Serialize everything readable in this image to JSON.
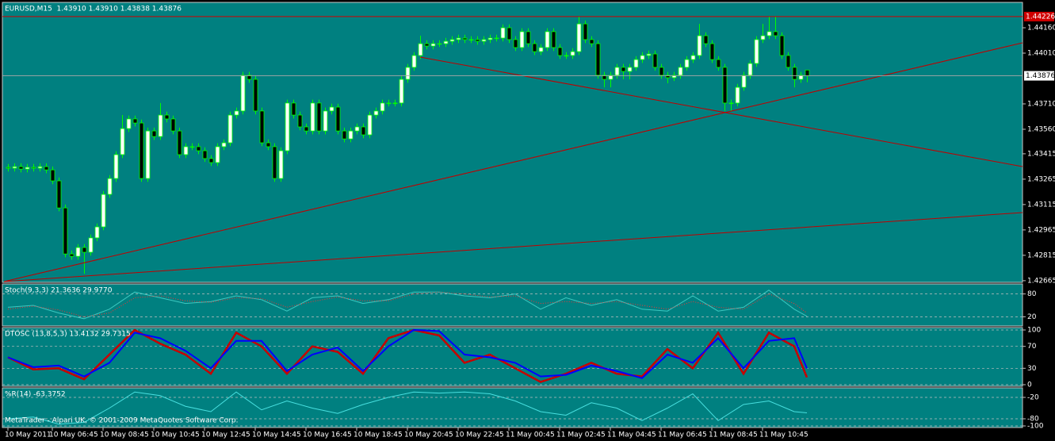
{
  "chart_data": [
    {
      "type": "candlestick",
      "title": "EURUSD,M15  1.43910 1.43910 1.43838 1.43876",
      "candle_color": "#00ff00",
      "bull_fill": "#ffffff",
      "bear_fill": "#000000",
      "open": [
        1.43335,
        1.4333,
        1.43339,
        1.43325,
        1.43335,
        1.4333,
        1.43339,
        1.4332,
        1.43255,
        1.43095,
        1.42823,
        1.42809,
        1.42861,
        1.42833,
        1.42918,
        1.42983,
        1.43175,
        1.43269,
        1.4341,
        1.43564,
        1.43621,
        1.43597,
        1.43269,
        1.4355,
        1.43517,
        1.43644,
        1.43621,
        1.4355,
        1.4341,
        1.43457,
        1.43457,
        1.43433,
        1.43387,
        1.43363,
        1.43457,
        1.4348,
        1.43644,
        1.43668,
        1.43879,
        1.43855,
        1.43668,
        1.4348,
        1.43457,
        1.43269,
        1.43433,
        1.43715,
        1.43644,
        1.43574,
        1.4355,
        1.43715,
        1.4355,
        1.43668,
        1.43691,
        1.4355,
        1.43503,
        1.4355,
        1.43574,
        1.43527,
        1.43644,
        1.43668,
        1.43715,
        1.43715,
        1.43715,
        1.43855,
        1.43926,
        1.43996,
        1.44066,
        1.44052,
        1.44066,
        1.44066,
        1.4408,
        1.4409,
        1.44099,
        1.4409,
        1.4409,
        1.4408,
        1.4409,
        1.44099,
        1.44099,
        1.4416,
        1.4409,
        1.44043,
        1.44137,
        1.44066,
        1.44019,
        1.44043,
        1.44137,
        1.44043,
        1.43996,
        1.43996,
        1.44019,
        1.44183,
        1.4409,
        1.44066,
        1.43879,
        1.43855,
        1.43879,
        1.43926,
        1.43902,
        1.43926,
        1.43972,
        1.43996,
        1.44005,
        1.43926,
        1.43879,
        1.43865,
        1.43879,
        1.43926,
        1.43972,
        1.43996,
        1.44113,
        1.44066,
        1.43972,
        1.43926,
        1.43715,
        1.43715,
        1.43808,
        1.43879,
        1.43949,
        1.4409,
        1.44113,
        1.44137,
        1.44113,
        1.43996,
        1.43926,
        1.43855,
        1.4391
      ],
      "high": [
        1.43355,
        1.43359,
        1.43359,
        1.43355,
        1.43355,
        1.43359,
        1.43359,
        1.4334,
        1.43275,
        1.43115,
        1.42843,
        1.42881,
        1.42881,
        1.42938,
        1.43003,
        1.43195,
        1.43289,
        1.4343,
        1.43644,
        1.43641,
        1.43641,
        1.43617,
        1.4357,
        1.4357,
        1.43715,
        1.43664,
        1.43641,
        1.4357,
        1.43477,
        1.43477,
        1.43477,
        1.43453,
        1.43407,
        1.43477,
        1.435,
        1.43664,
        1.43688,
        1.43899,
        1.43899,
        1.43875,
        1.43688,
        1.435,
        1.43477,
        1.43453,
        1.43735,
        1.43735,
        1.43664,
        1.43594,
        1.43735,
        1.43735,
        1.43688,
        1.43711,
        1.43711,
        1.4357,
        1.4357,
        1.43594,
        1.43594,
        1.43664,
        1.43688,
        1.43735,
        1.43735,
        1.43735,
        1.43875,
        1.43946,
        1.44016,
        1.44113,
        1.44086,
        1.44086,
        1.44086,
        1.441,
        1.4411,
        1.44119,
        1.44119,
        1.4411,
        1.4411,
        1.4411,
        1.44119,
        1.44119,
        1.4418,
        1.4418,
        1.4411,
        1.44157,
        1.44157,
        1.44086,
        1.44063,
        1.44157,
        1.44157,
        1.44063,
        1.44016,
        1.44039,
        1.44226,
        1.44203,
        1.4411,
        1.44086,
        1.43899,
        1.43899,
        1.43946,
        1.43946,
        1.43946,
        1.43992,
        1.44016,
        1.44025,
        1.44025,
        1.43946,
        1.43899,
        1.43899,
        1.43946,
        1.43992,
        1.44016,
        1.44183,
        1.44133,
        1.44086,
        1.43992,
        1.43946,
        1.43735,
        1.43828,
        1.43899,
        1.43969,
        1.4411,
        1.44183,
        1.44226,
        1.44226,
        1.44133,
        1.44016,
        1.43946,
        1.43899,
        1.4391
      ],
      "low": [
        1.4331,
        1.4331,
        1.43305,
        1.43305,
        1.4331,
        1.4331,
        1.433,
        1.43235,
        1.43075,
        1.42803,
        1.42789,
        1.42789,
        1.42706,
        1.42813,
        1.42898,
        1.42963,
        1.43155,
        1.43249,
        1.4339,
        1.43544,
        1.43577,
        1.43249,
        1.43249,
        1.43497,
        1.43497,
        1.43601,
        1.4353,
        1.4339,
        1.4339,
        1.43437,
        1.43413,
        1.43367,
        1.43343,
        1.43343,
        1.43437,
        1.4346,
        1.43624,
        1.43648,
        1.43835,
        1.43648,
        1.4346,
        1.43437,
        1.43249,
        1.43249,
        1.43413,
        1.43624,
        1.43554,
        1.4353,
        1.4353,
        1.4353,
        1.4353,
        1.43648,
        1.4353,
        1.43483,
        1.43483,
        1.4353,
        1.43507,
        1.43507,
        1.43624,
        1.43648,
        1.43695,
        1.43695,
        1.43695,
        1.43835,
        1.43906,
        1.43976,
        1.44032,
        1.44032,
        1.44046,
        1.44046,
        1.4406,
        1.4407,
        1.4407,
        1.4407,
        1.4406,
        1.4406,
        1.4407,
        1.44079,
        1.44079,
        1.4407,
        1.44023,
        1.44023,
        1.44046,
        1.43999,
        1.43999,
        1.44023,
        1.44023,
        1.43976,
        1.43976,
        1.43976,
        1.43999,
        1.4407,
        1.44046,
        1.43859,
        1.43808,
        1.43808,
        1.43859,
        1.43855,
        1.43855,
        1.43906,
        1.43952,
        1.43976,
        1.43906,
        1.43859,
        1.43832,
        1.43845,
        1.43859,
        1.43906,
        1.43952,
        1.43976,
        1.44046,
        1.43952,
        1.43906,
        1.43668,
        1.43668,
        1.43695,
        1.43788,
        1.43859,
        1.43929,
        1.4407,
        1.44093,
        1.44093,
        1.43976,
        1.43906,
        1.43808,
        1.43835,
        1.43838
      ],
      "close": [
        1.4333,
        1.43339,
        1.43325,
        1.43335,
        1.4333,
        1.43339,
        1.4332,
        1.43255,
        1.43095,
        1.42823,
        1.42809,
        1.42861,
        1.42833,
        1.42918,
        1.42983,
        1.43175,
        1.43269,
        1.4341,
        1.43564,
        1.43621,
        1.43597,
        1.43269,
        1.4355,
        1.43517,
        1.43644,
        1.43621,
        1.4355,
        1.4341,
        1.43457,
        1.43457,
        1.43433,
        1.43387,
        1.43363,
        1.43457,
        1.4348,
        1.43644,
        1.43668,
        1.43879,
        1.43855,
        1.43668,
        1.4348,
        1.43457,
        1.43269,
        1.43433,
        1.43715,
        1.43644,
        1.43574,
        1.4355,
        1.43715,
        1.4355,
        1.43668,
        1.43691,
        1.4355,
        1.43503,
        1.4355,
        1.43574,
        1.43527,
        1.43644,
        1.43668,
        1.43715,
        1.43715,
        1.43715,
        1.43855,
        1.43926,
        1.43996,
        1.44066,
        1.44052,
        1.44066,
        1.44066,
        1.4408,
        1.4409,
        1.44099,
        1.4409,
        1.4409,
        1.4408,
        1.4409,
        1.44099,
        1.44099,
        1.4416,
        1.4409,
        1.44043,
        1.44137,
        1.44066,
        1.44019,
        1.44043,
        1.44137,
        1.44043,
        1.43996,
        1.43996,
        1.44019,
        1.44183,
        1.4409,
        1.44066,
        1.43879,
        1.43855,
        1.43879,
        1.43926,
        1.43902,
        1.43926,
        1.43972,
        1.43996,
        1.44005,
        1.43926,
        1.43879,
        1.43865,
        1.43879,
        1.43926,
        1.43972,
        1.43996,
        1.44113,
        1.44066,
        1.43972,
        1.43926,
        1.43715,
        1.43715,
        1.43808,
        1.43879,
        1.43949,
        1.4409,
        1.44113,
        1.44137,
        1.44113,
        1.43996,
        1.43926,
        1.43855,
        1.43879,
        1.43876
      ],
      "ylim": [
        1.42655,
        1.4431
      ],
      "yticks": [
        {
          "value": 1.4416,
          "label": "1.44160"
        },
        {
          "value": 1.4401,
          "label": "1.44010"
        },
        {
          "value": 1.4371,
          "label": "1.43710"
        },
        {
          "value": 1.4356,
          "label": "1.43560"
        },
        1.43415,
        1.43265,
        1.43115,
        1.42965,
        1.42815,
        1.42665
      ],
      "xticks": [
        {
          "value": 0,
          "label": "10 May 2011"
        },
        {
          "value": 7,
          "label": "10 May 06:45"
        },
        {
          "value": 15,
          "label": "10 May 08:45"
        },
        {
          "value": 23,
          "label": "10 May 10:45"
        },
        {
          "value": 31,
          "label": "10 May 12:45"
        },
        {
          "value": 39,
          "label": "10 May 14:45"
        },
        {
          "value": 47,
          "label": "10 May 16:45"
        },
        {
          "value": 55,
          "label": "10 May 18:45"
        },
        {
          "value": 63,
          "label": "10 May 20:45"
        },
        {
          "value": 71,
          "label": "10 May 22:45"
        },
        {
          "value": 79,
          "label": "11 May 00:45"
        },
        {
          "value": 87,
          "label": "11 May 02:45"
        },
        {
          "value": 95,
          "label": "11 May 04:45"
        },
        {
          "value": 103,
          "label": "11 May 06:45"
        },
        {
          "value": 111,
          "label": "11 May 08:45"
        },
        {
          "value": 119,
          "label": "11 May 10:45"
        }
      ],
      "level_lines": [
        1.44226
      ],
      "level_color": "#d00000",
      "current_price": 1.43876,
      "current_color": "#a8a8a8",
      "grid": false
    },
    {
      "type": "line",
      "title": "Stoch(9,3,3) 21.3636 29.9770",
      "x": [
        0,
        4,
        8,
        12,
        16,
        20,
        24,
        28,
        32,
        36,
        40,
        44,
        48,
        52,
        56,
        60,
        64,
        68,
        72,
        76,
        80,
        84,
        88,
        92,
        96,
        100,
        104,
        108,
        112,
        116,
        120,
        124,
        126
      ],
      "series": [
        {
          "color": "#3cc8c0",
          "line_style": "solid",
          "width": 1,
          "values": [
            45,
            50,
            30,
            15,
            40,
            85,
            70,
            55,
            60,
            75,
            65,
            35,
            70,
            75,
            55,
            65,
            85,
            85,
            75,
            70,
            80,
            40,
            70,
            50,
            65,
            40,
            35,
            75,
            35,
            45,
            90,
            40,
            21.3636
          ]
        },
        {
          "color": "#ff3030",
          "line_style": "dotted",
          "width": 1,
          "values": [
            40,
            48,
            38,
            20,
            30,
            70,
            75,
            62,
            58,
            70,
            68,
            45,
            60,
            72,
            62,
            62,
            80,
            85,
            80,
            72,
            75,
            55,
            60,
            55,
            60,
            50,
            40,
            60,
            45,
            40,
            80,
            55,
            29.977
          ]
        }
      ],
      "ylim": [
        0,
        100
      ],
      "yticks": [
        80,
        20
      ],
      "grid": true
    },
    {
      "type": "line",
      "title": "DTOSC (13,8,5,3) 13.4132 29.7315",
      "x": [
        0,
        4,
        8,
        12,
        16,
        20,
        24,
        28,
        32,
        36,
        40,
        44,
        48,
        52,
        56,
        60,
        64,
        68,
        72,
        76,
        80,
        84,
        88,
        92,
        96,
        100,
        104,
        108,
        112,
        116,
        120,
        124,
        126
      ],
      "series": [
        {
          "color": "#c80000",
          "line_style": "solid",
          "width": 2.5,
          "values": [
            50,
            28,
            30,
            10,
            55,
            100,
            75,
            55,
            20,
            95,
            70,
            20,
            70,
            60,
            20,
            85,
            100,
            90,
            40,
            55,
            30,
            5,
            20,
            40,
            20,
            15,
            65,
            30,
            95,
            20,
            95,
            70,
            13.4132
          ]
        },
        {
          "color": "#0000ff",
          "line_style": "solid",
          "width": 2,
          "values": [
            50,
            32,
            35,
            15,
            40,
            95,
            85,
            62,
            30,
            80,
            80,
            25,
            55,
            68,
            25,
            70,
            100,
            98,
            55,
            50,
            40,
            15,
            18,
            35,
            25,
            12,
            55,
            40,
            85,
            30,
            80,
            85,
            29.7315
          ]
        }
      ],
      "ylim": [
        0,
        100
      ],
      "yticks": [
        100,
        70,
        30,
        0
      ],
      "grid": true
    },
    {
      "type": "line",
      "title": "%R(14) -63.3752",
      "note": "MetaTrader - Alpari UK, © 2001-2009 MetaQuotes Software Corp.",
      "x": [
        0,
        4,
        8,
        12,
        16,
        20,
        24,
        28,
        32,
        36,
        40,
        44,
        48,
        52,
        56,
        60,
        64,
        68,
        72,
        76,
        80,
        84,
        88,
        92,
        96,
        100,
        104,
        108,
        112,
        116,
        120,
        124,
        126
      ],
      "series": [
        {
          "color": "#48e0e0",
          "line_style": "solid",
          "width": 1,
          "values": [
            -80,
            -75,
            -95,
            -90,
            -50,
            -5,
            -15,
            -45,
            -60,
            -5,
            -55,
            -30,
            -50,
            -65,
            -40,
            -20,
            -5,
            -8,
            -5,
            -10,
            -30,
            -60,
            -70,
            -35,
            -50,
            -85,
            -50,
            -10,
            -85,
            -40,
            -30,
            -60,
            -63.3752
          ]
        }
      ],
      "ylim": [
        -100,
        0
      ],
      "yticks": [
        -20,
        -80,
        -100
      ],
      "grid": true
    }
  ]
}
